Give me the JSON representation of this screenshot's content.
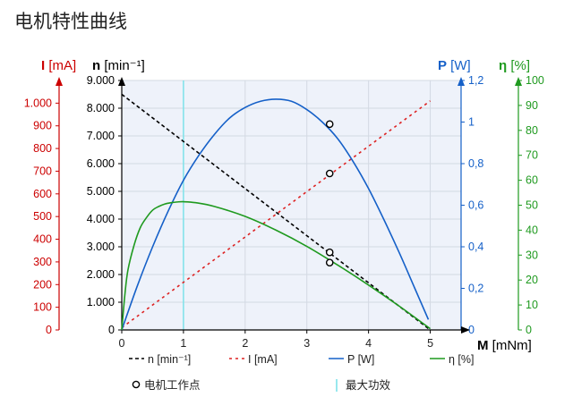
{
  "page_title": "电机特性曲线",
  "chart_data": {
    "type": "line",
    "title": "电机特性曲线",
    "x_axis": {
      "symbol": "M",
      "unit": " [mNm]",
      "ticks": [
        0,
        1,
        2,
        3,
        4,
        5
      ],
      "tick_labels": [
        "0",
        "1",
        "2",
        "3",
        "4",
        "5"
      ],
      "range": [
        0,
        5.5
      ]
    },
    "axes": {
      "current": {
        "symbol": "I",
        "unit": " [mA]",
        "color": "#cc0000",
        "range": [
          0,
          1100
        ],
        "ticks": [
          0,
          100,
          200,
          300,
          400,
          500,
          600,
          700,
          800,
          900,
          1000
        ],
        "tick_labels": [
          "0",
          "100",
          "200",
          "300",
          "400",
          "500",
          "600",
          "700",
          "800",
          "900",
          "1.000"
        ]
      },
      "speed": {
        "symbol": "n",
        "unit": " [min⁻¹]",
        "color": "#000000",
        "range": [
          0,
          9000
        ],
        "ticks": [
          0,
          1000,
          2000,
          3000,
          4000,
          5000,
          6000,
          7000,
          8000,
          9000
        ],
        "tick_labels": [
          "0",
          "1.000",
          "2.000",
          "3.000",
          "4.000",
          "5.000",
          "6.000",
          "7.000",
          "8.000",
          "9.000"
        ]
      },
      "power": {
        "symbol": "P",
        "unit": " [W]",
        "color": "#1560c8",
        "range": [
          0,
          1.2
        ],
        "ticks": [
          0,
          0.2,
          0.4,
          0.6,
          0.8,
          1.0,
          1.2
        ],
        "tick_labels": [
          "0",
          "0,2",
          "0,4",
          "0,6",
          "0,8",
          "1",
          "1,2"
        ]
      },
      "efficiency": {
        "symbol": "η",
        "unit": " [%]",
        "color": "#1f9a1f",
        "range": [
          0,
          100
        ],
        "ticks": [
          0,
          10,
          20,
          30,
          40,
          50,
          60,
          70,
          80,
          90,
          100
        ],
        "tick_labels": [
          "0",
          "10",
          "20",
          "30",
          "40",
          "50",
          "60",
          "70",
          "80",
          "90",
          "100"
        ]
      }
    },
    "series": [
      {
        "name": "n [min⁻¹]",
        "axis": "speed",
        "color": "#000000",
        "dash": "4,3",
        "x": [
          0,
          5
        ],
        "y": [
          8500,
          0
        ]
      },
      {
        "name": "I [mA]",
        "axis": "current",
        "color": "#dd2222",
        "dash": "3,4",
        "x": [
          0,
          5
        ],
        "y": [
          10,
          1010
        ]
      },
      {
        "name": "P [W]",
        "axis": "power",
        "color": "#1560c8",
        "dash": "",
        "x": [
          0,
          0.25,
          0.5,
          0.75,
          1,
          1.25,
          1.5,
          1.75,
          2,
          2.25,
          2.5,
          2.75,
          3,
          3.25,
          3.5,
          3.75,
          4,
          4.25,
          4.5,
          4.75,
          4.97
        ],
        "y": [
          0.0,
          0.21,
          0.4,
          0.57,
          0.72,
          0.84,
          0.94,
          1.02,
          1.07,
          1.1,
          1.11,
          1.1,
          1.06,
          1.0,
          0.92,
          0.81,
          0.68,
          0.53,
          0.37,
          0.2,
          0.05
        ]
      },
      {
        "name": "η [%]",
        "axis": "efficiency",
        "color": "#1f9a1f",
        "dash": "",
        "x": [
          0,
          0.05,
          0.1,
          0.2,
          0.3,
          0.4,
          0.5,
          0.6,
          0.7,
          0.8,
          0.9,
          1.0,
          1.2,
          1.5,
          2.0,
          2.5,
          3.0,
          3.5,
          4.0,
          4.5,
          5.0
        ],
        "y": [
          0,
          14,
          24,
          34,
          41,
          45,
          48,
          49.5,
          50.5,
          51,
          51.3,
          51.4,
          51,
          49.5,
          45.5,
          40,
          33.5,
          26,
          18,
          9.5,
          0.5
        ]
      }
    ],
    "operating_point": {
      "label": "电机工作点",
      "x": 3.37,
      "values": {
        "speed": 2800,
        "current": 690,
        "power": 0.99,
        "efficiency": 27
      }
    },
    "max_efficiency_line": {
      "label": "最大功效",
      "x": 1.0,
      "color": "#7ee3ea"
    },
    "grid": true,
    "legend": {
      "position": "bottom",
      "entries": [
        {
          "label": "n [min⁻¹]",
          "color": "#000000",
          "dash": "4,3"
        },
        {
          "label": "I [mA]",
          "color": "#dd2222",
          "dash": "3,4"
        },
        {
          "label": "P [W]",
          "color": "#1560c8",
          "dash": ""
        },
        {
          "label": "η [%]",
          "color": "#1f9a1f",
          "dash": ""
        },
        {
          "label": "电机工作点",
          "marker": "circle"
        },
        {
          "label": "最大功效",
          "marker": "vline",
          "color": "#7ee3ea"
        }
      ]
    }
  }
}
